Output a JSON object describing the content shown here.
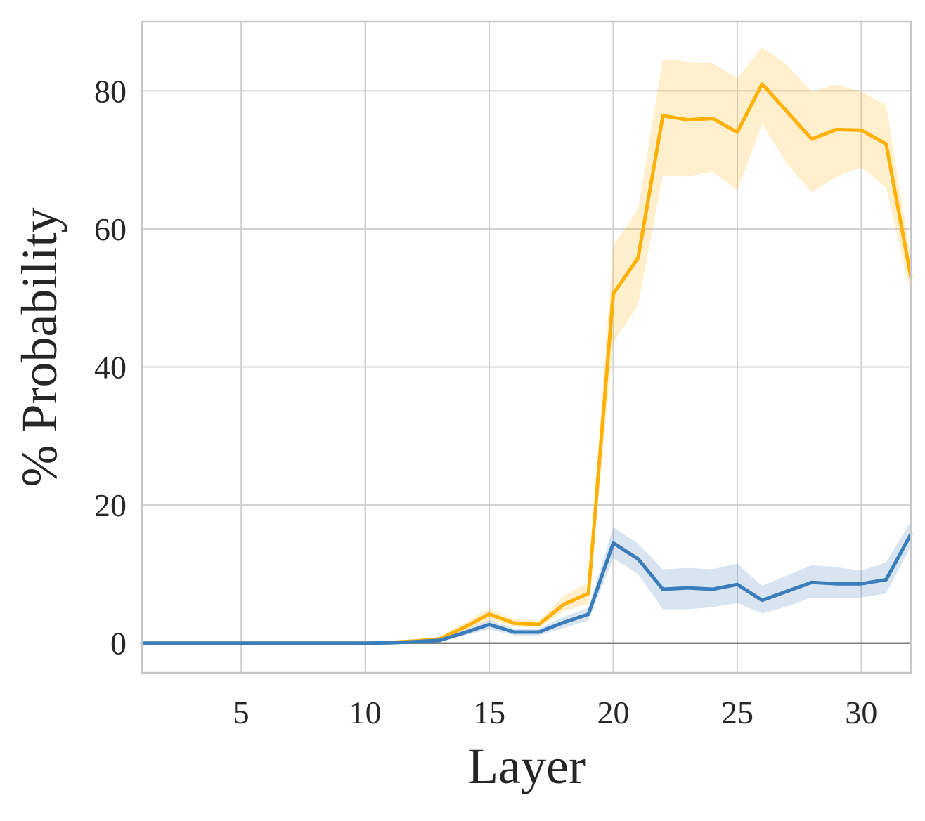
{
  "chart_data": {
    "type": "line",
    "xlabel": "Layer",
    "ylabel": "% Probability",
    "xlim": [
      1,
      32
    ],
    "ylim": [
      -4.3,
      90
    ],
    "x_ticks": [
      5,
      10,
      15,
      20,
      25,
      30
    ],
    "y_ticks": [
      0,
      20,
      40,
      60,
      80
    ],
    "grid": true,
    "zero_line": true,
    "x": [
      1,
      2,
      3,
      4,
      5,
      6,
      7,
      8,
      9,
      10,
      11,
      12,
      13,
      14,
      15,
      16,
      17,
      18,
      19,
      20,
      21,
      22,
      23,
      24,
      25,
      26,
      27,
      28,
      29,
      30,
      31,
      32
    ],
    "series": [
      {
        "color": "#FFB000",
        "values": [
          0,
          0,
          0,
          0,
          0,
          0,
          0,
          0,
          0,
          0,
          0.1,
          0.3,
          0.6,
          2.3,
          4.2,
          2.9,
          2.7,
          5.6,
          7.2,
          50.6,
          55.8,
          76.4,
          75.8,
          76.0,
          74.0,
          81.0,
          77.0,
          73.0,
          74.4,
          74.3,
          72.3,
          53.0
        ],
        "lower_band": [
          0,
          0,
          0,
          0,
          0,
          0,
          0,
          0,
          0,
          0,
          0,
          0.2,
          0.4,
          1.8,
          3.4,
          2.4,
          2.2,
          4.6,
          5.7,
          43.5,
          49.0,
          67.7,
          67.6,
          68.3,
          65.6,
          75.2,
          69.4,
          65.3,
          67.6,
          68.9,
          66.0,
          50.5
        ],
        "upper_band": [
          0,
          0,
          0,
          0,
          0,
          0,
          0,
          0,
          0,
          0,
          0.2,
          0.5,
          0.9,
          2.9,
          5.0,
          3.5,
          3.3,
          6.8,
          8.8,
          57.6,
          62.8,
          84.6,
          84.2,
          84.0,
          81.8,
          86.3,
          83.8,
          79.9,
          80.9,
          79.9,
          77.9,
          55.8
        ]
      },
      {
        "color": "#3A7DBA",
        "values": [
          0,
          0,
          0,
          0,
          0,
          0,
          0,
          0,
          0,
          0,
          0.05,
          0.2,
          0.4,
          1.5,
          2.7,
          1.6,
          1.6,
          3.0,
          4.2,
          14.5,
          12.2,
          7.8,
          8.0,
          7.8,
          8.5,
          6.2,
          7.5,
          8.8,
          8.6,
          8.6,
          9.2,
          15.8
        ],
        "lower_band": [
          0,
          0,
          0,
          0,
          0,
          0,
          0,
          0,
          0,
          0,
          0,
          0.1,
          0.2,
          1.1,
          2.0,
          1.1,
          1.1,
          2.2,
          3.3,
          12.3,
          10.0,
          4.9,
          4.9,
          5.2,
          5.8,
          4.3,
          5.3,
          6.6,
          6.5,
          6.6,
          7.2,
          14.1
        ],
        "upper_band": [
          0,
          0,
          0,
          0,
          0,
          0,
          0,
          0,
          0,
          0,
          0.1,
          0.3,
          0.6,
          1.9,
          3.4,
          2.1,
          2.1,
          3.8,
          5.1,
          16.8,
          14.4,
          10.7,
          10.9,
          10.7,
          11.5,
          8.3,
          9.8,
          11.3,
          11.0,
          10.5,
          11.7,
          17.7
        ]
      }
    ]
  }
}
